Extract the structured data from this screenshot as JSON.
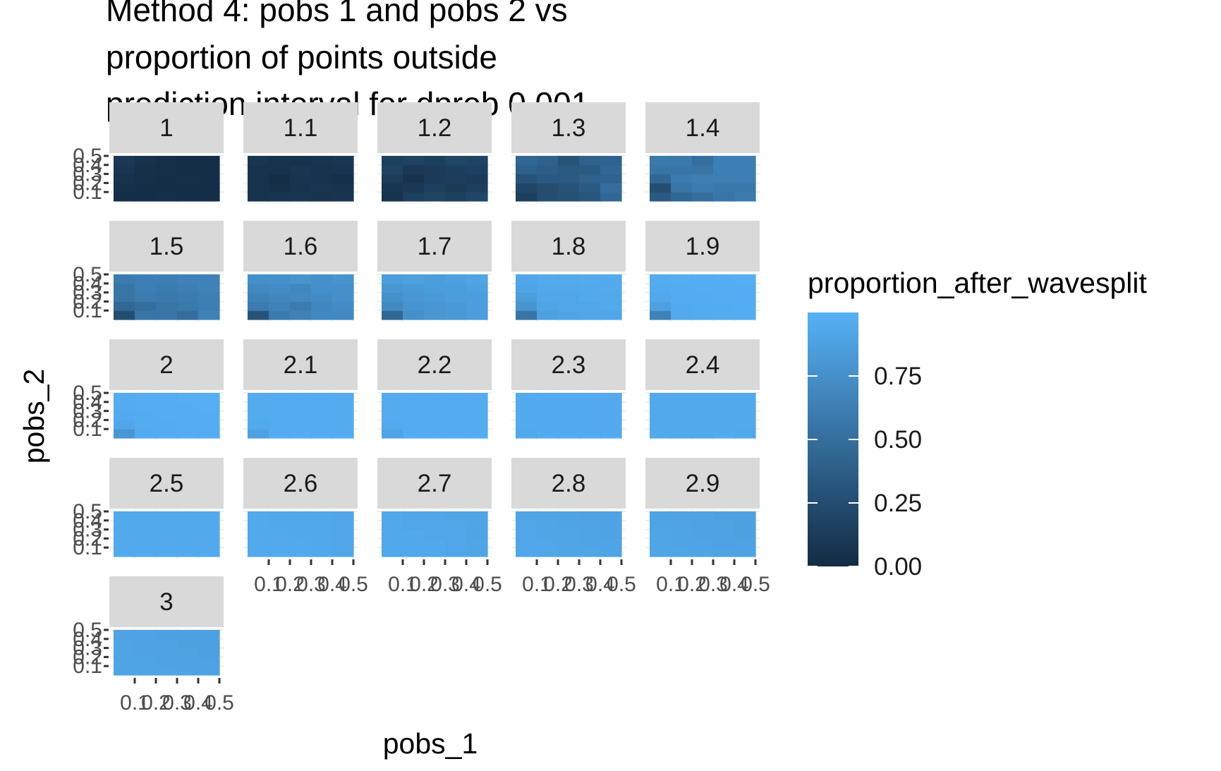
{
  "chart_data": {
    "type": "heatmap",
    "title_lines": [
      "Method 4: pobs 1 and pobs 2 vs",
      "proportion of points outside",
      "prediction interval for dprob 0.001"
    ],
    "xlabel": "pobs_1",
    "ylabel": "pobs_2",
    "facet_labels": [
      "1",
      "1.1",
      "1.2",
      "1.3",
      "1.4",
      "1.5",
      "1.6",
      "1.7",
      "1.8",
      "1.9",
      "2",
      "2.1",
      "2.2",
      "2.3",
      "2.4",
      "2.5",
      "2.6",
      "2.7",
      "2.8",
      "2.9",
      "3"
    ],
    "x_ticks": [
      "0.1",
      "0.2",
      "0.3",
      "0.4",
      "0.5"
    ],
    "y_ticks": [
      "0.1",
      "0.2",
      "0.3",
      "0.4",
      "0.5"
    ],
    "x_values": [
      0.05,
      0.15,
      0.25,
      0.35,
      0.45
    ],
    "y_values": [
      0.05,
      0.15,
      0.25,
      0.35,
      0.45
    ],
    "facets": [
      {
        "label": "1",
        "values": [
          [
            0.02,
            0.02,
            0.03,
            0.02,
            0.02
          ],
          [
            0.03,
            0.02,
            0.02,
            0.02,
            0.02
          ],
          [
            0.05,
            0.03,
            0.02,
            0.03,
            0.02
          ],
          [
            0.08,
            0.04,
            0.03,
            0.02,
            0.02
          ],
          [
            0.1,
            0.05,
            0.03,
            0.02,
            0.02
          ]
        ]
      },
      {
        "label": "1.1",
        "values": [
          [
            0.05,
            0.07,
            0.08,
            0.06,
            0.07
          ],
          [
            0.05,
            0.04,
            0.06,
            0.08,
            0.06
          ],
          [
            0.05,
            0.02,
            0.07,
            0.05,
            0.04
          ],
          [
            0.05,
            0.05,
            0.08,
            0.06,
            0.07
          ],
          [
            0.08,
            0.05,
            0.05,
            0.07,
            0.09
          ]
        ]
      },
      {
        "label": "1.2",
        "values": [
          [
            0.05,
            0.15,
            0.18,
            0.16,
            0.2
          ],
          [
            0.08,
            0.1,
            0.15,
            0.12,
            0.15
          ],
          [
            0.12,
            0.05,
            0.12,
            0.14,
            0.12
          ],
          [
            0.18,
            0.1,
            0.12,
            0.14,
            0.16
          ],
          [
            0.16,
            0.18,
            0.15,
            0.2,
            0.18
          ]
        ]
      },
      {
        "label": "1.3",
        "values": [
          [
            0.15,
            0.25,
            0.28,
            0.32,
            0.45
          ],
          [
            0.2,
            0.25,
            0.3,
            0.35,
            0.5
          ],
          [
            0.3,
            0.35,
            0.35,
            0.4,
            0.42
          ],
          [
            0.4,
            0.38,
            0.35,
            0.35,
            0.45
          ],
          [
            0.45,
            0.4,
            0.3,
            0.4,
            0.42
          ]
        ]
      },
      {
        "label": "1.4",
        "values": [
          [
            0.35,
            0.45,
            0.5,
            0.55,
            0.6
          ],
          [
            0.25,
            0.55,
            0.6,
            0.58,
            0.58
          ],
          [
            0.45,
            0.6,
            0.62,
            0.62,
            0.63
          ],
          [
            0.55,
            0.55,
            0.55,
            0.63,
            0.63
          ],
          [
            0.58,
            0.58,
            0.5,
            0.63,
            0.63
          ]
        ]
      },
      {
        "label": "1.5",
        "values": [
          [
            0.25,
            0.55,
            0.55,
            0.5,
            0.65
          ],
          [
            0.45,
            0.5,
            0.55,
            0.58,
            0.62
          ],
          [
            0.55,
            0.6,
            0.58,
            0.6,
            0.62
          ],
          [
            0.55,
            0.62,
            0.6,
            0.62,
            0.65
          ],
          [
            0.6,
            0.63,
            0.63,
            0.65,
            0.65
          ]
        ]
      },
      {
        "label": "1.6",
        "values": [
          [
            0.3,
            0.6,
            0.65,
            0.7,
            0.7
          ],
          [
            0.6,
            0.65,
            0.6,
            0.68,
            0.72
          ],
          [
            0.65,
            0.68,
            0.7,
            0.72,
            0.75
          ],
          [
            0.7,
            0.72,
            0.68,
            0.75,
            0.75
          ],
          [
            0.75,
            0.75,
            0.78,
            0.75,
            0.78
          ]
        ]
      },
      {
        "label": "1.7",
        "values": [
          [
            0.45,
            0.75,
            0.8,
            0.82,
            0.85
          ],
          [
            0.7,
            0.78,
            0.8,
            0.82,
            0.85
          ],
          [
            0.75,
            0.8,
            0.82,
            0.85,
            0.85
          ],
          [
            0.8,
            0.82,
            0.85,
            0.85,
            0.88
          ],
          [
            0.85,
            0.88,
            0.85,
            0.88,
            0.9
          ]
        ]
      },
      {
        "label": "1.8",
        "values": [
          [
            0.55,
            0.88,
            0.9,
            0.92,
            0.92
          ],
          [
            0.78,
            0.9,
            0.92,
            0.92,
            0.94
          ],
          [
            0.85,
            0.92,
            0.92,
            0.94,
            0.94
          ],
          [
            0.9,
            0.93,
            0.93,
            0.94,
            0.95
          ],
          [
            0.92,
            0.94,
            0.94,
            0.95,
            0.95
          ]
        ]
      },
      {
        "label": "1.9",
        "values": [
          [
            0.65,
            0.94,
            0.95,
            0.96,
            0.96
          ],
          [
            0.88,
            0.95,
            0.96,
            0.96,
            0.97
          ],
          [
            0.93,
            0.96,
            0.96,
            0.97,
            0.97
          ],
          [
            0.95,
            0.96,
            0.97,
            0.97,
            0.97
          ],
          [
            0.96,
            0.97,
            0.97,
            0.97,
            0.98
          ]
        ]
      },
      {
        "label": "2",
        "values": [
          [
            0.8,
            0.95,
            0.96,
            0.96,
            0.96
          ],
          [
            0.92,
            0.96,
            0.96,
            0.97,
            0.97
          ],
          [
            0.95,
            0.96,
            0.97,
            0.97,
            0.97
          ],
          [
            0.96,
            0.97,
            0.97,
            0.97,
            0.98
          ],
          [
            0.96,
            0.97,
            0.97,
            0.98,
            0.98
          ]
        ]
      },
      {
        "label": "2.1",
        "values": [
          [
            0.88,
            0.96,
            0.96,
            0.96,
            0.96
          ],
          [
            0.94,
            0.96,
            0.96,
            0.96,
            0.96
          ],
          [
            0.96,
            0.96,
            0.96,
            0.96,
            0.96
          ],
          [
            0.96,
            0.96,
            0.96,
            0.96,
            0.96
          ],
          [
            0.96,
            0.96,
            0.96,
            0.96,
            0.96
          ]
        ]
      },
      {
        "label": "2.2",
        "values": [
          [
            0.9,
            0.96,
            0.96,
            0.96,
            0.96
          ],
          [
            0.95,
            0.96,
            0.96,
            0.96,
            0.96
          ],
          [
            0.96,
            0.96,
            0.96,
            0.96,
            0.96
          ],
          [
            0.96,
            0.96,
            0.96,
            0.96,
            0.96
          ],
          [
            0.96,
            0.96,
            0.96,
            0.96,
            0.96
          ]
        ]
      },
      {
        "label": "2.3",
        "values": [
          [
            0.93,
            0.95,
            0.95,
            0.95,
            0.95
          ],
          [
            0.95,
            0.95,
            0.95,
            0.95,
            0.95
          ],
          [
            0.95,
            0.95,
            0.95,
            0.95,
            0.95
          ],
          [
            0.95,
            0.95,
            0.95,
            0.95,
            0.95
          ],
          [
            0.95,
            0.95,
            0.95,
            0.95,
            0.95
          ]
        ]
      },
      {
        "label": "2.4",
        "values": [
          [
            0.94,
            0.94,
            0.94,
            0.95,
            0.93
          ],
          [
            0.94,
            0.94,
            0.94,
            0.94,
            0.94
          ],
          [
            0.94,
            0.94,
            0.94,
            0.94,
            0.94
          ],
          [
            0.94,
            0.94,
            0.94,
            0.94,
            0.94
          ],
          [
            0.94,
            0.94,
            0.94,
            0.94,
            0.94
          ]
        ]
      },
      {
        "label": "2.5",
        "values": [
          [
            0.94,
            0.94,
            0.94,
            0.94,
            0.94
          ],
          [
            0.94,
            0.94,
            0.94,
            0.94,
            0.94
          ],
          [
            0.94,
            0.94,
            0.94,
            0.94,
            0.94
          ],
          [
            0.94,
            0.94,
            0.94,
            0.94,
            0.94
          ],
          [
            0.94,
            0.94,
            0.94,
            0.94,
            0.94
          ]
        ]
      },
      {
        "label": "2.6",
        "values": [
          [
            0.94,
            0.94,
            0.94,
            0.93,
            0.92
          ],
          [
            0.94,
            0.94,
            0.94,
            0.93,
            0.92
          ],
          [
            0.94,
            0.94,
            0.93,
            0.93,
            0.92
          ],
          [
            0.94,
            0.93,
            0.93,
            0.93,
            0.92
          ],
          [
            0.94,
            0.93,
            0.93,
            0.93,
            0.92
          ]
        ]
      },
      {
        "label": "2.7",
        "values": [
          [
            0.93,
            0.93,
            0.93,
            0.92,
            0.91
          ],
          [
            0.93,
            0.93,
            0.93,
            0.92,
            0.91
          ],
          [
            0.93,
            0.93,
            0.92,
            0.92,
            0.9
          ],
          [
            0.93,
            0.92,
            0.92,
            0.92,
            0.91
          ],
          [
            0.93,
            0.92,
            0.92,
            0.91,
            0.91
          ]
        ]
      },
      {
        "label": "2.8",
        "values": [
          [
            0.92,
            0.92,
            0.91,
            0.91,
            0.9
          ],
          [
            0.92,
            0.92,
            0.91,
            0.9,
            0.9
          ],
          [
            0.92,
            0.91,
            0.91,
            0.9,
            0.89
          ],
          [
            0.92,
            0.91,
            0.9,
            0.9,
            0.89
          ],
          [
            0.91,
            0.91,
            0.9,
            0.89,
            0.89
          ]
        ]
      },
      {
        "label": "2.9",
        "values": [
          [
            0.91,
            0.91,
            0.9,
            0.9,
            0.89
          ],
          [
            0.91,
            0.9,
            0.9,
            0.89,
            0.89
          ],
          [
            0.91,
            0.9,
            0.89,
            0.89,
            0.88
          ],
          [
            0.9,
            0.9,
            0.89,
            0.89,
            0.88
          ],
          [
            0.9,
            0.89,
            0.89,
            0.88,
            0.88
          ]
        ]
      },
      {
        "label": "3",
        "values": [
          [
            0.9,
            0.9,
            0.9,
            0.89,
            0.89
          ],
          [
            0.9,
            0.9,
            0.89,
            0.89,
            0.89
          ],
          [
            0.9,
            0.89,
            0.89,
            0.89,
            0.88
          ],
          [
            0.9,
            0.89,
            0.89,
            0.88,
            0.88
          ],
          [
            0.89,
            0.89,
            0.88,
            0.88,
            0.88
          ]
        ]
      }
    ],
    "legend": {
      "title": "proportion_after_wavesplit",
      "breaks": [
        0,
        0.25,
        0.5,
        0.75
      ],
      "labels": [
        "0.00",
        "0.25",
        "0.50",
        "0.75"
      ],
      "range": [
        0,
        1
      ],
      "color_low": "#132B43",
      "color_high": "#56B1F7"
    },
    "colors": {
      "strip_background": "#D9D9D9",
      "grid": "#EBEBEB",
      "tick": "#333333"
    }
  }
}
